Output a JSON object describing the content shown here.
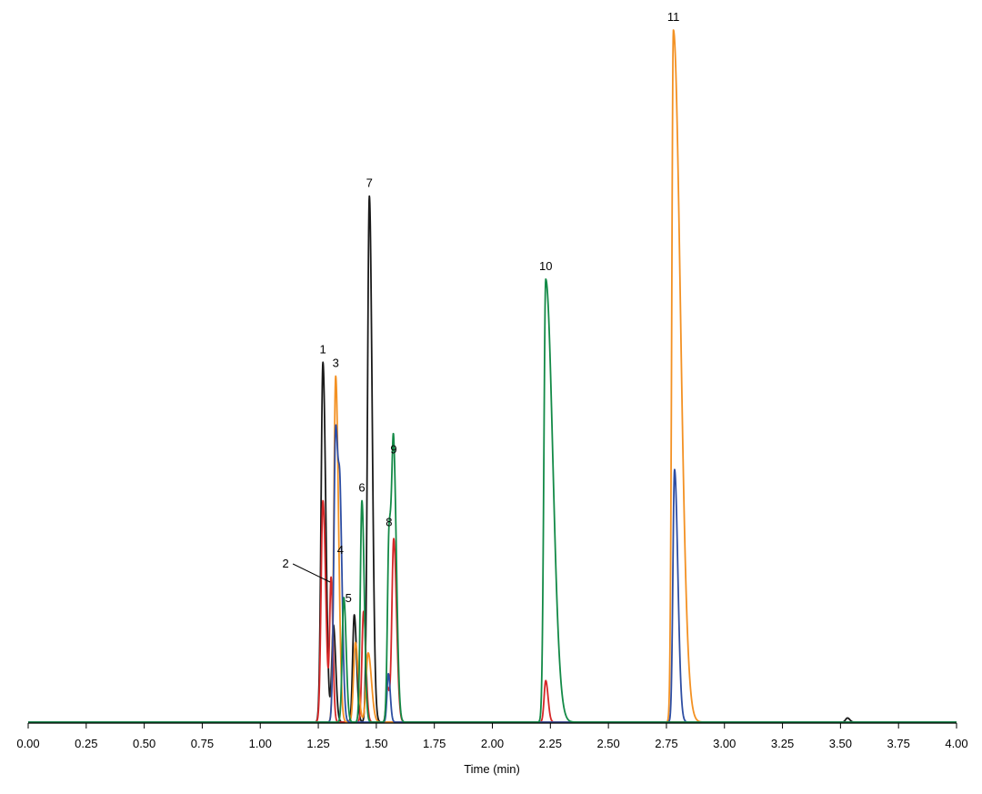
{
  "chart_data": {
    "type": "line",
    "title": "",
    "xlabel": "Time (min)",
    "ylabel": "",
    "xlim": [
      0,
      4
    ],
    "ylim": [
      0,
      100
    ],
    "grid": false,
    "legend": "none",
    "x_ticks": [
      "0.00",
      "0.25",
      "0.50",
      "0.75",
      "1.00",
      "1.25",
      "1.50",
      "1.75",
      "2.00",
      "2.25",
      "2.50",
      "2.75",
      "3.00",
      "3.25",
      "3.50",
      "3.75",
      "4.00"
    ],
    "series": [
      {
        "color": "#1a1a1a",
        "peaks": [
          {
            "rt": 1.27,
            "height": 52,
            "width": 0.008,
            "tail": 0.012
          },
          {
            "rt": 1.315,
            "height": 14,
            "width": 0.007,
            "tail": 0.01
          },
          {
            "rt": 1.405,
            "height": 15.5,
            "width": 0.007,
            "tail": 0.01
          },
          {
            "rt": 1.47,
            "height": 76,
            "width": 0.008,
            "tail": 0.012
          },
          {
            "rt": 3.53,
            "height": 0.6,
            "width": 0.008,
            "tail": 0.01
          }
        ]
      },
      {
        "color": "#d62728",
        "peaks": [
          {
            "rt": 1.27,
            "height": 32,
            "width": 0.008,
            "tail": 0.012
          },
          {
            "rt": 1.305,
            "height": 20.5,
            "width": 0.006,
            "tail": 0.008
          },
          {
            "rt": 1.445,
            "height": 16,
            "width": 0.007,
            "tail": 0.01
          },
          {
            "rt": 1.548,
            "height": 5,
            "width": 0.006,
            "tail": 0.008
          },
          {
            "rt": 1.575,
            "height": 26.5,
            "width": 0.008,
            "tail": 0.012
          },
          {
            "rt": 2.23,
            "height": 6,
            "width": 0.007,
            "tail": 0.01
          }
        ]
      },
      {
        "color": "#f39123",
        "peaks": [
          {
            "rt": 1.325,
            "height": 50,
            "width": 0.008,
            "tail": 0.012
          },
          {
            "rt": 1.41,
            "height": 11.5,
            "width": 0.008,
            "tail": 0.012
          },
          {
            "rt": 1.465,
            "height": 10,
            "width": 0.009,
            "tail": 0.014
          },
          {
            "rt": 2.78,
            "height": 100,
            "width": 0.007,
            "tail": 0.03
          }
        ]
      },
      {
        "color": "#2e4ea3",
        "peaks": [
          {
            "rt": 1.325,
            "height": 42.5,
            "width": 0.008,
            "tail": 0.012
          },
          {
            "rt": 1.345,
            "height": 23,
            "width": 0.007,
            "tail": 0.01
          },
          {
            "rt": 1.552,
            "height": 7,
            "width": 0.006,
            "tail": 0.008
          },
          {
            "rt": 2.785,
            "height": 36.5,
            "width": 0.007,
            "tail": 0.014
          }
        ]
      },
      {
        "color": "#138a47",
        "peaks": [
          {
            "rt": 1.36,
            "height": 18,
            "width": 0.007,
            "tail": 0.01
          },
          {
            "rt": 1.438,
            "height": 32,
            "width": 0.007,
            "tail": 0.01
          },
          {
            "rt": 1.555,
            "height": 27,
            "width": 0.007,
            "tail": 0.01
          },
          {
            "rt": 1.575,
            "height": 37.5,
            "width": 0.008,
            "tail": 0.012
          },
          {
            "rt": 2.23,
            "height": 64,
            "width": 0.008,
            "tail": 0.03
          }
        ]
      }
    ],
    "annotations": [
      {
        "text": "1",
        "x": 1.27,
        "y": 52
      },
      {
        "text": "2",
        "x": 1.305,
        "y": 20.5,
        "leader": true
      },
      {
        "text": "3",
        "x": 1.325,
        "y": 50
      },
      {
        "text": "4",
        "x": 1.345,
        "y": 23
      },
      {
        "text": "5",
        "x": 1.38,
        "y": 16
      },
      {
        "text": "6",
        "x": 1.438,
        "y": 32
      },
      {
        "text": "7",
        "x": 1.47,
        "y": 76
      },
      {
        "text": "8",
        "x": 1.555,
        "y": 27
      },
      {
        "text": "9",
        "x": 1.575,
        "y": 37.5
      },
      {
        "text": "10",
        "x": 2.23,
        "y": 64
      },
      {
        "text": "11",
        "x": 2.78,
        "y": 100
      }
    ]
  }
}
